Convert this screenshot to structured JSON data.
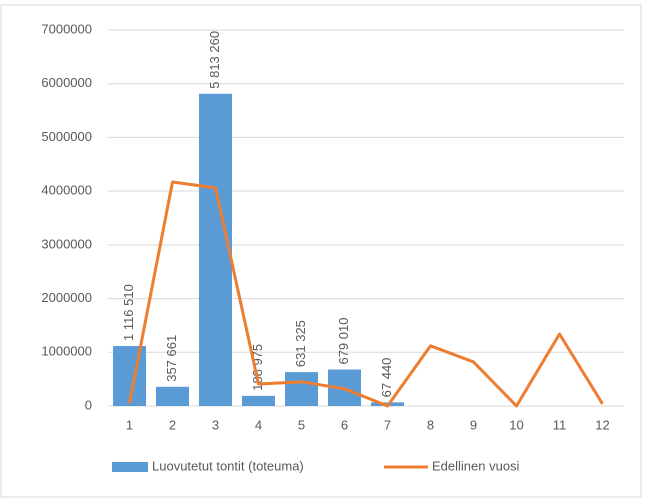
{
  "chart_data": {
    "type": "bar",
    "categories": [
      "1",
      "2",
      "3",
      "4",
      "5",
      "6",
      "7",
      "8",
      "9",
      "10",
      "11",
      "12"
    ],
    "series": [
      {
        "name": "Luovutetut tontit (toteuma)",
        "type": "bar",
        "color": "#5b9bd5",
        "values": [
          1116510,
          357661,
          5813260,
          188975,
          631325,
          679010,
          67440,
          null,
          null,
          null,
          null,
          null
        ],
        "value_labels": [
          "1 116 510",
          "357 661",
          "5 813 260",
          "188 975",
          "631 325",
          "679 010",
          "67 440",
          null,
          null,
          null,
          null,
          null
        ]
      },
      {
        "name": "Edellinen vuosi",
        "type": "line",
        "color": "#ed7d31",
        "values": [
          50000,
          4170000,
          4060000,
          410000,
          450000,
          320000,
          0,
          1120000,
          820000,
          0,
          1340000,
          40000
        ]
      }
    ],
    "ylim": [
      0,
      7000000
    ],
    "yticks": [
      0,
      1000000,
      2000000,
      3000000,
      4000000,
      5000000,
      6000000,
      7000000
    ],
    "grid": true,
    "legend": "bottom"
  }
}
